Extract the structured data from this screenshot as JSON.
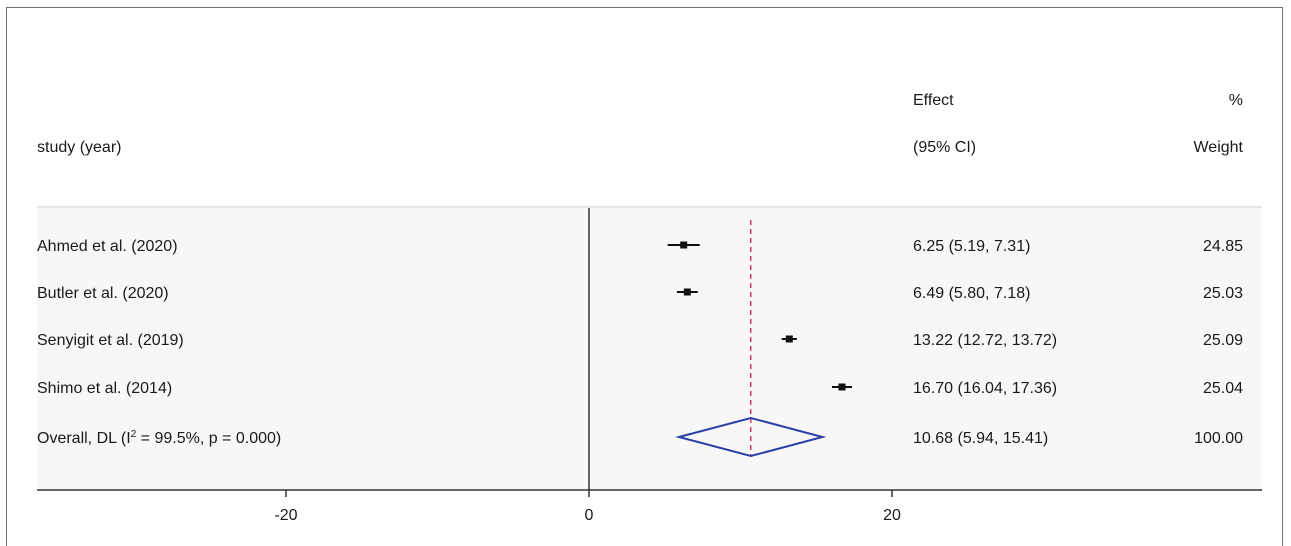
{
  "chart_data": {
    "type": "forest",
    "headers": {
      "study": "study (year)",
      "effect_line1": "Effect",
      "effect_line2": "(95% CI)",
      "weight_line1": "%",
      "weight_line2": "Weight"
    },
    "studies": [
      {
        "label": "Ahmed et al. (2020)",
        "effect": 6.25,
        "ci_low": 5.19,
        "ci_high": 7.31,
        "ci_text": "6.25 (5.19, 7.31)",
        "weight": 24.85,
        "weight_text": "24.85"
      },
      {
        "label": "Butler et al. (2020)",
        "effect": 6.49,
        "ci_low": 5.8,
        "ci_high": 7.18,
        "ci_text": "6.49 (5.80, 7.18)",
        "weight": 25.03,
        "weight_text": "25.03"
      },
      {
        "label": "Senyigit et al. (2019)",
        "effect": 13.22,
        "ci_low": 12.72,
        "ci_high": 13.72,
        "ci_text": "13.22 (12.72, 13.72)",
        "weight": 25.09,
        "weight_text": "25.09"
      },
      {
        "label": "Shimo et al. (2014)",
        "effect": 16.7,
        "ci_low": 16.04,
        "ci_high": 17.36,
        "ci_text": "16.70 (16.04, 17.36)",
        "weight": 25.04,
        "weight_text": "25.04"
      }
    ],
    "overall": {
      "label_prefix": "Overall, DL (I",
      "label_sup": "2",
      "label_suffix": " = 99.5%, p = 0.000)",
      "effect": 10.68,
      "ci_low": 5.94,
      "ci_high": 15.41,
      "ci_text": "10.68 (5.94, 15.41)",
      "weight_text": "100.00"
    },
    "x_axis": {
      "ticks": [
        -20,
        0,
        20
      ],
      "tick_labels": [
        "-20",
        "0",
        "20"
      ],
      "xlim": [
        -36.4,
        45.7
      ]
    },
    "null_line": 0,
    "colors": {
      "marker": "#111111",
      "overall_diamond": "#2b3fa8",
      "overall_line": "#d0103a",
      "axis": "#333333"
    }
  }
}
